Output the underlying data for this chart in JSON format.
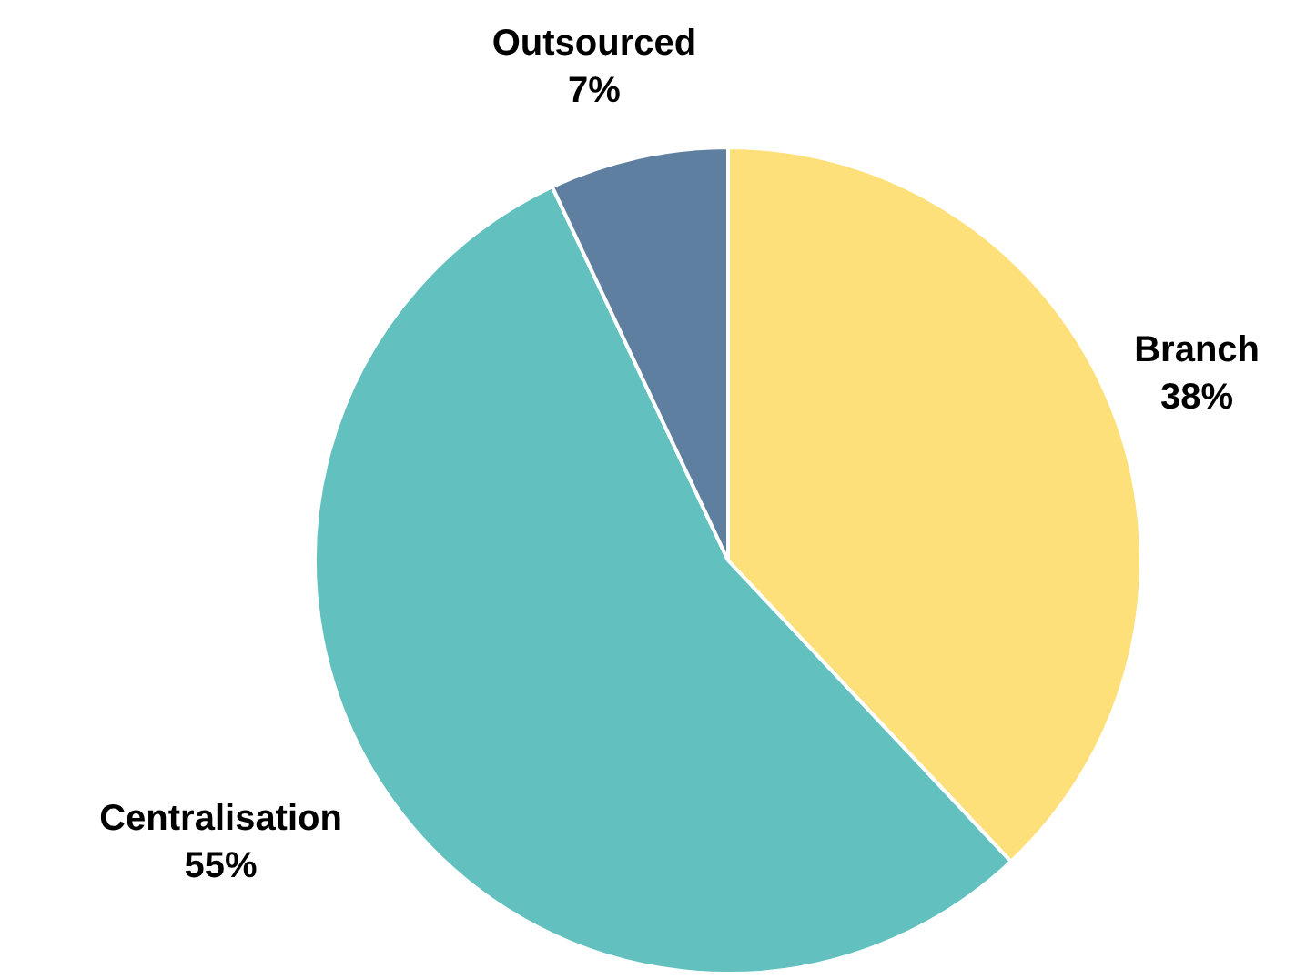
{
  "chart_data": {
    "type": "pie",
    "categories": [
      "Branch",
      "Centralisation",
      "Outsourced"
    ],
    "values": [
      38,
      55,
      7
    ],
    "colors": [
      "#fde07a",
      "#62c0bf",
      "#5f7fa0"
    ],
    "value_labels": [
      "38%",
      "55%",
      "7%"
    ],
    "legend": false
  }
}
